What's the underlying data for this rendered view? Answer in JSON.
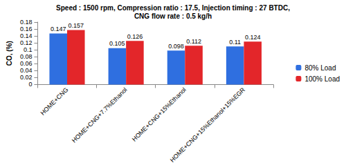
{
  "chart_data": {
    "type": "bar",
    "title": "Speed : 1500 rpm, Compression ratio : 17.5, Injection timing : 27 BTDC,\nCNG flow rate : 0.5 kg/h",
    "y_label": "CO, (%)",
    "categories": [
      "HOME+CNG",
      "HOME+CNG+7.7%Ethanol",
      "HOME+CNG+15%Ethanol",
      "HOME+CNG+15%Ethanol+15%EGR"
    ],
    "series": [
      {
        "name": "80% Load",
        "color": "#2f6fe0",
        "values": [
          0.147,
          0.105,
          0.098,
          0.11
        ]
      },
      {
        "name": "100% Load",
        "color": "#e3262a",
        "values": [
          0.157,
          0.126,
          0.112,
          0.124
        ]
      }
    ],
    "ylim": [
      0,
      0.18
    ],
    "yticks": [
      0,
      0.02,
      0.04,
      0.06,
      0.08,
      0.1,
      0.12,
      0.14,
      0.16,
      0.18
    ],
    "grid": false,
    "legend": "right",
    "data_labels": true
  }
}
